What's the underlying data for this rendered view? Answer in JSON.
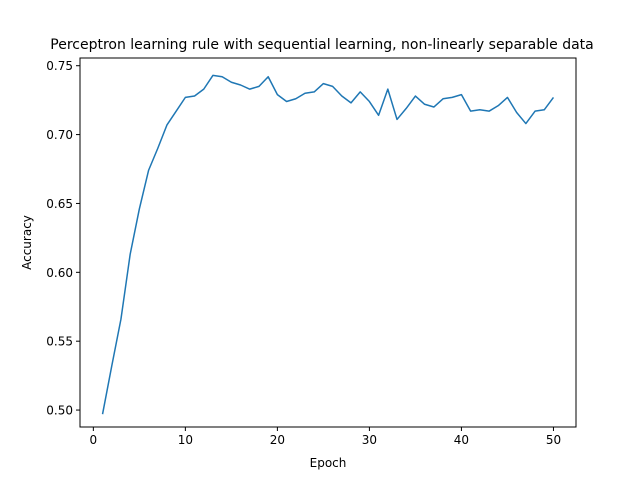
{
  "chart_data": {
    "type": "line",
    "title": "Perceptron learning rule with sequential learning, non-linearly separable data",
    "xlabel": "Epoch",
    "ylabel": "Accuracy",
    "xlim": [
      -1.45,
      52.45
    ],
    "ylim": [
      0.4877,
      0.7556
    ],
    "xticks": [
      0,
      10,
      20,
      30,
      40,
      50
    ],
    "yticks": [
      0.5,
      0.55,
      0.6,
      0.65,
      0.7,
      0.75
    ],
    "xtick_labels": [
      "0",
      "10",
      "20",
      "30",
      "40",
      "50"
    ],
    "ytick_labels": [
      "0.50",
      "0.55",
      "0.60",
      "0.65",
      "0.70",
      "0.75"
    ],
    "grid": false,
    "series": [
      {
        "color": "#1f77b4",
        "x": [
          1,
          2,
          3,
          4,
          5,
          6,
          7,
          8,
          9,
          10,
          11,
          12,
          13,
          14,
          15,
          16,
          17,
          18,
          19,
          20,
          21,
          22,
          23,
          24,
          25,
          26,
          27,
          28,
          29,
          30,
          31,
          32,
          33,
          34,
          35,
          36,
          37,
          38,
          39,
          40,
          41,
          42,
          43,
          44,
          45,
          46,
          47,
          48,
          49,
          50
        ],
        "y": [
          0.497,
          0.532,
          0.566,
          0.613,
          0.646,
          0.674,
          0.69,
          0.707,
          0.717,
          0.727,
          0.728,
          0.733,
          0.743,
          0.742,
          0.738,
          0.736,
          0.733,
          0.735,
          0.742,
          0.729,
          0.724,
          0.726,
          0.73,
          0.731,
          0.737,
          0.735,
          0.728,
          0.723,
          0.731,
          0.724,
          0.714,
          0.733,
          0.711,
          0.719,
          0.728,
          0.722,
          0.72,
          0.726,
          0.727,
          0.729,
          0.717,
          0.718,
          0.717,
          0.721,
          0.727,
          0.716,
          0.708,
          0.717,
          0.718,
          0.727
        ]
      }
    ]
  }
}
